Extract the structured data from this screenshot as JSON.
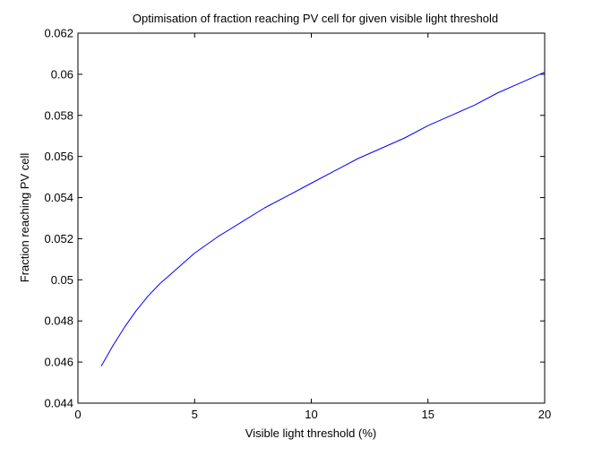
{
  "chart_data": {
    "type": "line",
    "title": "Optimisation of fraction reaching PV cell for given visible light threshold",
    "xlabel": "Visible light threshold (%)",
    "ylabel": "Fraction reaching PV cell",
    "xlim": [
      0,
      20
    ],
    "ylim": [
      0.044,
      0.062
    ],
    "xticks": [
      0,
      5,
      10,
      15,
      20
    ],
    "xtick_labels": [
      "0",
      "5",
      "10",
      "15",
      "20"
    ],
    "yticks": [
      0.044,
      0.046,
      0.048,
      0.05,
      0.052,
      0.054,
      0.056,
      0.058,
      0.06,
      0.062
    ],
    "ytick_labels": [
      "0.044",
      "0.046",
      "0.048",
      "0.05",
      "0.052",
      "0.054",
      "0.056",
      "0.058",
      "0.06",
      "0.062"
    ],
    "grid": false,
    "series": [
      {
        "color": "#0000ff",
        "x": [
          1,
          1.5,
          2,
          2.5,
          3,
          3.5,
          4,
          5,
          6,
          7,
          8,
          9,
          10,
          11,
          12,
          13,
          14,
          15,
          16,
          17,
          18,
          19,
          20
        ],
        "y": [
          0.0458,
          0.0468,
          0.0477,
          0.0485,
          0.0492,
          0.0498,
          0.0503,
          0.0513,
          0.0521,
          0.0528,
          0.0535,
          0.0541,
          0.0547,
          0.0553,
          0.0559,
          0.0564,
          0.0569,
          0.0575,
          0.058,
          0.0585,
          0.0591,
          0.0596,
          0.0601
        ]
      }
    ]
  }
}
